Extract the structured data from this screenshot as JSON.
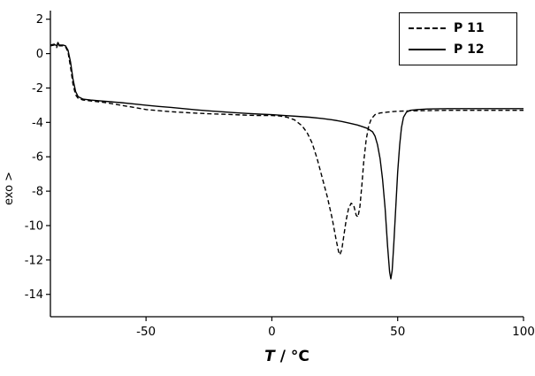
{
  "chart_data": {
    "type": "line",
    "title": "",
    "xlabel_var": "T",
    "xlabel_unit": " / °C",
    "ylabel": "exo >",
    "xlim": [
      -88,
      100
    ],
    "ylim": [
      -15.3,
      2.5
    ],
    "xticks": [
      -50,
      0,
      50,
      100
    ],
    "xtick_labels": [
      "-50",
      "0",
      "50",
      "100"
    ],
    "yticks": [
      2,
      0,
      -2,
      -4,
      -6,
      -8,
      -10,
      -12,
      -14
    ],
    "ytick_labels": [
      "2",
      "0",
      "-2",
      "-4",
      "-6",
      "-8",
      "-10",
      "-12",
      "-14"
    ],
    "grid": false,
    "legend": {
      "position": "top-right",
      "entries": [
        {
          "label": "P 11",
          "style": "dashed"
        },
        {
          "label": "P 12",
          "style": "solid"
        }
      ]
    },
    "line_color": "#000000",
    "series": [
      {
        "name": "P 11",
        "style": "dashed",
        "color": "#000000",
        "points": [
          [
            -88,
            0.45
          ],
          [
            -86.5,
            0.5
          ],
          [
            -85.5,
            0.35
          ],
          [
            -85,
            0.6
          ],
          [
            -84.5,
            0.45
          ],
          [
            -83,
            0.45
          ],
          [
            -82,
            0.4
          ],
          [
            -81,
            0.1
          ],
          [
            -80,
            -0.8
          ],
          [
            -79,
            -1.8
          ],
          [
            -78,
            -2.4
          ],
          [
            -77,
            -2.6
          ],
          [
            -75,
            -2.7
          ],
          [
            -72,
            -2.75
          ],
          [
            -69,
            -2.8
          ],
          [
            -66,
            -2.85
          ],
          [
            -62,
            -2.95
          ],
          [
            -58,
            -3.05
          ],
          [
            -54,
            -3.15
          ],
          [
            -50,
            -3.25
          ],
          [
            -45,
            -3.32
          ],
          [
            -40,
            -3.38
          ],
          [
            -35,
            -3.42
          ],
          [
            -30,
            -3.46
          ],
          [
            -25,
            -3.5
          ],
          [
            -20,
            -3.52
          ],
          [
            -15,
            -3.55
          ],
          [
            -10,
            -3.58
          ],
          [
            -5,
            -3.6
          ],
          [
            0,
            -3.6
          ],
          [
            3,
            -3.62
          ],
          [
            6,
            -3.7
          ],
          [
            9,
            -3.85
          ],
          [
            12,
            -4.2
          ],
          [
            14,
            -4.6
          ],
          [
            16,
            -5.2
          ],
          [
            18,
            -6.1
          ],
          [
            20,
            -7.2
          ],
          [
            22,
            -8.3
          ],
          [
            24,
            -9.6
          ],
          [
            25.5,
            -10.8
          ],
          [
            26.5,
            -11.5
          ],
          [
            27,
            -11.7
          ],
          [
            27.8,
            -11.4
          ],
          [
            28.5,
            -10.7
          ],
          [
            29.5,
            -9.7
          ],
          [
            30.5,
            -9.0
          ],
          [
            31.5,
            -8.7
          ],
          [
            32.5,
            -8.8
          ],
          [
            33.5,
            -9.4
          ],
          [
            34.2,
            -9.5
          ],
          [
            35,
            -8.9
          ],
          [
            35.8,
            -7.6
          ],
          [
            36.5,
            -6.3
          ],
          [
            37.5,
            -5.0
          ],
          [
            38.5,
            -4.2
          ],
          [
            39.5,
            -3.8
          ],
          [
            41,
            -3.55
          ],
          [
            43,
            -3.45
          ],
          [
            46,
            -3.4
          ],
          [
            50,
            -3.35
          ],
          [
            55,
            -3.33
          ],
          [
            60,
            -3.32
          ],
          [
            70,
            -3.3
          ],
          [
            80,
            -3.3
          ],
          [
            90,
            -3.3
          ],
          [
            100,
            -3.3
          ]
        ]
      },
      {
        "name": "P 12",
        "style": "solid",
        "color": "#000000",
        "points": [
          [
            -88,
            0.5
          ],
          [
            -86.5,
            0.55
          ],
          [
            -85.5,
            0.45
          ],
          [
            -85,
            0.65
          ],
          [
            -84.5,
            0.5
          ],
          [
            -83,
            0.5
          ],
          [
            -82,
            0.45
          ],
          [
            -81,
            0.2
          ],
          [
            -80,
            -0.5
          ],
          [
            -79,
            -1.5
          ],
          [
            -78,
            -2.2
          ],
          [
            -77,
            -2.5
          ],
          [
            -75,
            -2.65
          ],
          [
            -72,
            -2.7
          ],
          [
            -68,
            -2.75
          ],
          [
            -64,
            -2.8
          ],
          [
            -60,
            -2.85
          ],
          [
            -55,
            -2.92
          ],
          [
            -50,
            -3.0
          ],
          [
            -45,
            -3.07
          ],
          [
            -40,
            -3.13
          ],
          [
            -35,
            -3.2
          ],
          [
            -30,
            -3.27
          ],
          [
            -25,
            -3.33
          ],
          [
            -20,
            -3.38
          ],
          [
            -15,
            -3.43
          ],
          [
            -10,
            -3.48
          ],
          [
            -5,
            -3.52
          ],
          [
            0,
            -3.55
          ],
          [
            5,
            -3.6
          ],
          [
            10,
            -3.65
          ],
          [
            15,
            -3.7
          ],
          [
            20,
            -3.77
          ],
          [
            24,
            -3.85
          ],
          [
            28,
            -3.95
          ],
          [
            31,
            -4.05
          ],
          [
            34,
            -4.15
          ],
          [
            36,
            -4.25
          ],
          [
            38,
            -4.35
          ],
          [
            40,
            -4.55
          ],
          [
            41,
            -4.8
          ],
          [
            42,
            -5.3
          ],
          [
            43,
            -6.1
          ],
          [
            44,
            -7.3
          ],
          [
            45,
            -9.0
          ],
          [
            46,
            -11.2
          ],
          [
            46.8,
            -12.7
          ],
          [
            47.3,
            -13.1
          ],
          [
            47.8,
            -12.6
          ],
          [
            48.5,
            -11.0
          ],
          [
            49.3,
            -8.8
          ],
          [
            50,
            -6.9
          ],
          [
            50.8,
            -5.3
          ],
          [
            51.5,
            -4.3
          ],
          [
            52.3,
            -3.7
          ],
          [
            53.5,
            -3.4
          ],
          [
            55,
            -3.3
          ],
          [
            58,
            -3.25
          ],
          [
            62,
            -3.22
          ],
          [
            70,
            -3.2
          ],
          [
            80,
            -3.2
          ],
          [
            90,
            -3.2
          ],
          [
            100,
            -3.2
          ]
        ]
      }
    ]
  }
}
